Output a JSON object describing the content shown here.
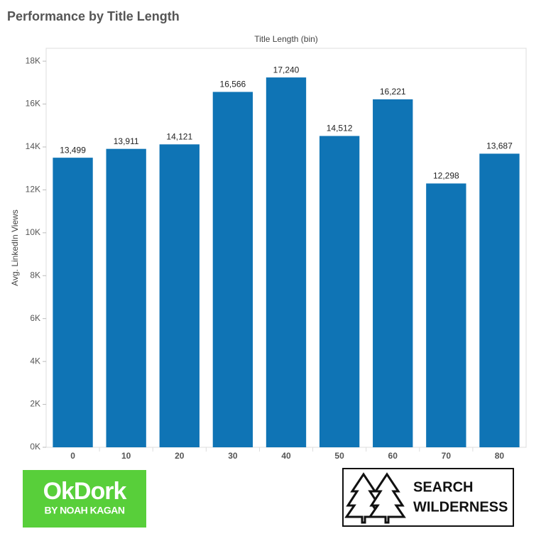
{
  "chart_data": {
    "type": "bar",
    "title": "Performance by Title Length",
    "x_label": "Title Length (bin)",
    "y_label": "Avg. LinkedIn Views",
    "categories": [
      "0",
      "10",
      "20",
      "30",
      "40",
      "50",
      "60",
      "70",
      "80"
    ],
    "values": [
      13499,
      13911,
      14121,
      16566,
      17240,
      14512,
      16221,
      12298,
      13687
    ],
    "value_labels": [
      "13,499",
      "13,911",
      "14,121",
      "16,566",
      "17,240",
      "14,512",
      "16,221",
      "12,298",
      "13,687"
    ],
    "color": "#0f74b5",
    "ylim": [
      0,
      18600
    ],
    "yticks": [
      {
        "value": 0,
        "label": "0K"
      },
      {
        "value": 2000,
        "label": "2K"
      },
      {
        "value": 4000,
        "label": "4K"
      },
      {
        "value": 6000,
        "label": "6K"
      },
      {
        "value": 8000,
        "label": "8K"
      },
      {
        "value": 10000,
        "label": "10K"
      },
      {
        "value": 12000,
        "label": "12K"
      },
      {
        "value": 14000,
        "label": "14K"
      },
      {
        "value": 16000,
        "label": "16K"
      },
      {
        "value": 18000,
        "label": "18K"
      }
    ],
    "grid": false
  },
  "logos": {
    "okdork": {
      "name": "OkDork",
      "tagline": "BY NOAH KAGAN"
    },
    "search_wilderness": {
      "line1": "SEARCH",
      "line2": "WILDERNESS"
    }
  }
}
